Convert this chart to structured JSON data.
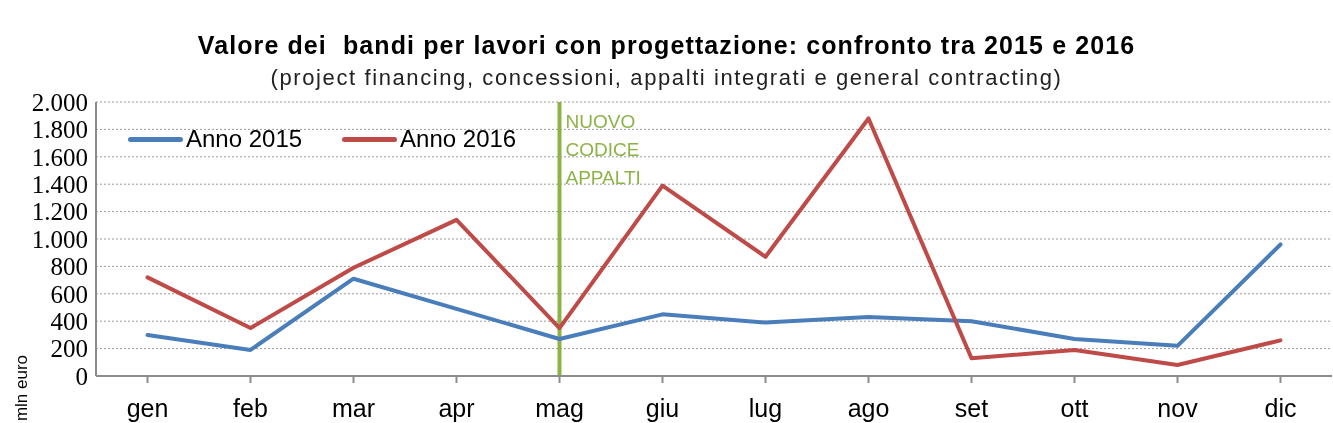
{
  "chart_data": {
    "type": "line",
    "title": "Valore dei  bandi per lavori con progettazione: confronto tra 2015 e 2016",
    "subtitle": "(project financing, concessioni, appalti integrati e general contracting)",
    "ylabel": "mln euro",
    "categories": [
      "gen",
      "feb",
      "mar",
      "apr",
      "mag",
      "giu",
      "lug",
      "ago",
      "set",
      "ott",
      "nov",
      "dic"
    ],
    "ylim": [
      0,
      2000
    ],
    "yticks": [
      0,
      200,
      400,
      600,
      800,
      {
        "value": 1000,
        "label": "1.000"
      },
      {
        "value": 1200,
        "label": "1.200"
      },
      {
        "value": 1400,
        "label": "1.400"
      },
      {
        "value": 1600,
        "label": "1.600"
      },
      {
        "value": 1800,
        "label": "1.800"
      },
      {
        "value": 2000,
        "label": "2.000"
      }
    ],
    "series": [
      {
        "name": "Anno 2015",
        "color": "#4a7ebb",
        "values": [
          300,
          190,
          710,
          490,
          270,
          450,
          390,
          430,
          400,
          270,
          220,
          960
        ]
      },
      {
        "name": "Anno 2016",
        "color": "#be4b48",
        "values": [
          720,
          350,
          790,
          1140,
          350,
          1390,
          870,
          1880,
          130,
          190,
          80,
          260
        ]
      }
    ],
    "ref_lines": [
      {
        "axis": "x",
        "value": "mag",
        "label": "NUOVO CODICE APPALTI",
        "color": "#8db347"
      }
    ],
    "grid": "y",
    "legend": "top left",
    "marker": "none"
  }
}
